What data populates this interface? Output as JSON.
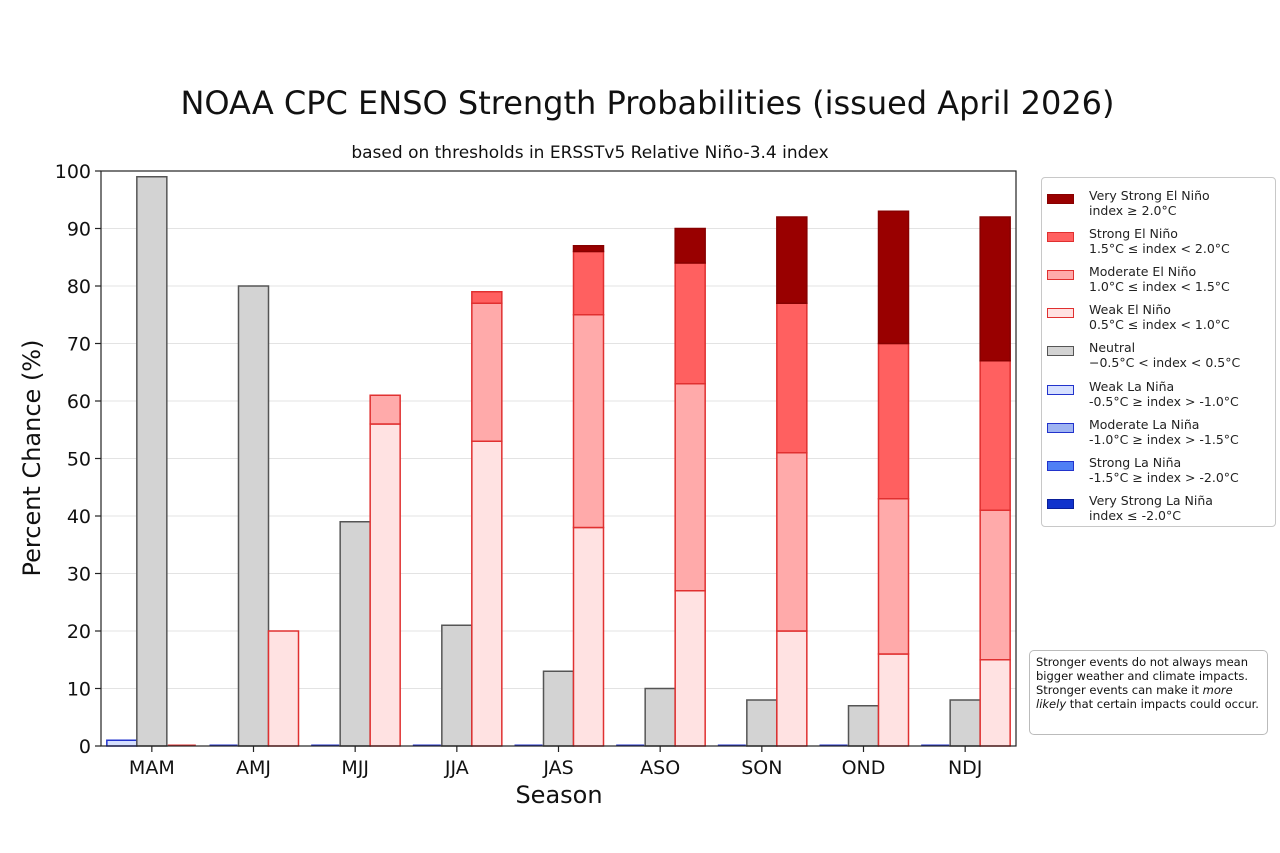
{
  "chart_data": {
    "type": "bar",
    "title": "NOAA CPC ENSO Strength Probabilities (issued April 2026)",
    "subtitle": "based on thresholds in ERSSTv5 Relative Niño-3.4 index",
    "xlabel": "Season",
    "ylabel": "Percent Chance (%)",
    "ylim": [
      0,
      100
    ],
    "yticks": [
      "0",
      "10",
      "20",
      "30",
      "40",
      "50",
      "60",
      "70",
      "80",
      "90",
      "100"
    ],
    "grid": "horizontal",
    "legend_position": "right",
    "categories": [
      "MAM",
      "AMJ",
      "MJJ",
      "JJA",
      "JAS",
      "ASO",
      "SON",
      "OND",
      "NDJ"
    ],
    "series": [
      {
        "name": "Very Strong El Niño",
        "rule": "index ≥ 2.0°C",
        "group": "el_nino",
        "color": "#990000",
        "border": "#880000",
        "values": [
          0,
          0,
          0,
          0,
          1,
          6,
          15,
          23,
          25
        ]
      },
      {
        "name": "Strong El Niño",
        "rule": "1.5°C ≤ index < 2.0°C",
        "group": "el_nino",
        "color": "#ff6060",
        "border": "#e03030",
        "values": [
          0,
          0,
          0,
          2,
          11,
          21,
          26,
          27,
          26
        ]
      },
      {
        "name": "Moderate El Niño",
        "rule": "1.0°C ≤ index < 1.5°C",
        "group": "el_nino",
        "color": "#ffaaaa",
        "border": "#e03030",
        "values": [
          0,
          0,
          5,
          24,
          37,
          36,
          31,
          27,
          26
        ]
      },
      {
        "name": "Weak El Niño",
        "rule": "0.5°C ≤ index < 1.0°C",
        "group": "el_nino",
        "color": "#ffe2e2",
        "border": "#e03030",
        "values": [
          0,
          20,
          56,
          53,
          38,
          27,
          20,
          16,
          15
        ]
      },
      {
        "name": "Neutral",
        "rule": "−0.5°C < index < 0.5°C",
        "group": "neutral",
        "color": "#d3d3d3",
        "border": "#555555",
        "values": [
          99,
          80,
          39,
          21,
          13,
          10,
          8,
          7,
          8
        ]
      },
      {
        "name": "Weak La Niña",
        "rule": "-0.5°C ≥ index > -1.0°C",
        "group": "la_nina",
        "color": "#d6e0ff",
        "border": "#2233cc",
        "values": [
          1,
          0,
          0,
          0,
          0,
          0,
          0,
          0,
          0
        ]
      },
      {
        "name": "Moderate La Niña",
        "rule": "-1.0°C ≥ index > -1.5°C",
        "group": "la_nina",
        "color": "#9fb4f2",
        "border": "#2233cc",
        "values": [
          0,
          0,
          0,
          0,
          0,
          0,
          0,
          0,
          0
        ]
      },
      {
        "name": "Strong La Niña",
        "rule": "-1.5°C ≥ index > -2.0°C",
        "group": "la_nina",
        "color": "#4f7ff5",
        "border": "#2233cc",
        "values": [
          0,
          0,
          0,
          0,
          0,
          0,
          0,
          0,
          0
        ]
      },
      {
        "name": "Very Strong La Niña",
        "rule": "index ≤ -2.0°C",
        "group": "la_nina",
        "color": "#1133cc",
        "border": "#0a1f99",
        "values": [
          0,
          0,
          0,
          0,
          0,
          0,
          0,
          0,
          0
        ]
      }
    ]
  },
  "note": {
    "before": "Stronger events do not always mean bigger weather and climate impacts. Stronger events can make it ",
    "emphasis": "more likely",
    "after": " that certain impacts could occur."
  }
}
